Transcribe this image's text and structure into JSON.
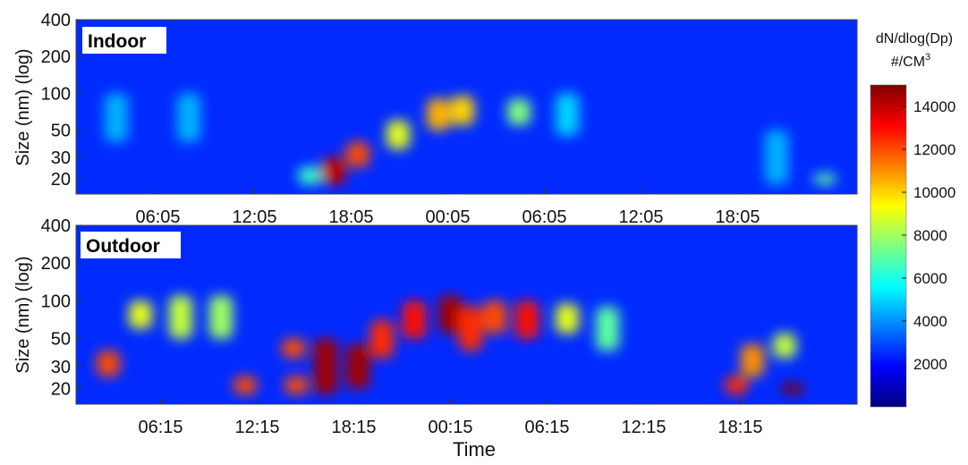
{
  "chart_data": [
    {
      "type": "heatmap",
      "panel_label": "Indoor",
      "ylabel": "Size (nm) (log)",
      "y_scale": "log",
      "ylim": [
        15,
        400
      ],
      "y_ticks": [
        20,
        30,
        50,
        100,
        200,
        400
      ],
      "x_tick_labels": [
        "06:05",
        "12:05",
        "18:05",
        "00:05",
        "06:05",
        "12:05",
        "18:05"
      ],
      "cells": [
        {
          "t": "03:30",
          "d_min": 40,
          "d_max": 100,
          "value": 4500
        },
        {
          "t": "08:00",
          "d_min": 40,
          "d_max": 100,
          "value": 4500
        },
        {
          "t": "15:30",
          "d_min": 18,
          "d_max": 25,
          "value": 6500
        },
        {
          "t": "17:00",
          "d_min": 18,
          "d_max": 30,
          "value": 14000
        },
        {
          "t": "18:30",
          "d_min": 25,
          "d_max": 40,
          "value": 12000
        },
        {
          "t": "21:00",
          "d_min": 35,
          "d_max": 60,
          "value": 9000
        },
        {
          "t": "23:30",
          "d_min": 50,
          "d_max": 90,
          "value": 10500
        },
        {
          "t": "01:00",
          "d_min": 55,
          "d_max": 95,
          "value": 10000
        },
        {
          "t": "04:30",
          "d_min": 55,
          "d_max": 90,
          "value": 7500
        },
        {
          "t": "07:30",
          "d_min": 45,
          "d_max": 100,
          "value": 5000
        },
        {
          "t": "20:30",
          "d_min": 18,
          "d_max": 50,
          "value": 4500
        },
        {
          "t": "23:30",
          "d_min": 18,
          "d_max": 22,
          "value": 7000
        }
      ]
    },
    {
      "type": "heatmap",
      "panel_label": "Outdoor",
      "ylabel": "Size (nm) (log)",
      "xlabel": "Time",
      "y_scale": "log",
      "ylim": [
        15,
        400
      ],
      "y_ticks": [
        20,
        30,
        50,
        100,
        200,
        400
      ],
      "x_tick_labels": [
        "06:15",
        "12:15",
        "18:15",
        "00:15",
        "06:15",
        "12:15",
        "18:15"
      ],
      "cells": [
        {
          "t": "03:00",
          "d_min": 25,
          "d_max": 40,
          "value": 12000
        },
        {
          "t": "05:00",
          "d_min": 60,
          "d_max": 100,
          "value": 9000
        },
        {
          "t": "07:30",
          "d_min": 50,
          "d_max": 110,
          "value": 8500
        },
        {
          "t": "10:00",
          "d_min": 50,
          "d_max": 110,
          "value": 8000
        },
        {
          "t": "11:30",
          "d_min": 18,
          "d_max": 25,
          "value": 12000
        },
        {
          "t": "14:30",
          "d_min": 35,
          "d_max": 50,
          "value": 12000
        },
        {
          "t": "14:40",
          "d_min": 18,
          "d_max": 25,
          "value": 12000
        },
        {
          "t": "16:30",
          "d_min": 18,
          "d_max": 50,
          "value": 14500
        },
        {
          "t": "18:30",
          "d_min": 20,
          "d_max": 45,
          "value": 14500
        },
        {
          "t": "20:00",
          "d_min": 35,
          "d_max": 70,
          "value": 12500
        },
        {
          "t": "22:00",
          "d_min": 50,
          "d_max": 100,
          "value": 13000
        },
        {
          "t": "00:15",
          "d_min": 55,
          "d_max": 110,
          "value": 14500
        },
        {
          "t": "01:30",
          "d_min": 40,
          "d_max": 90,
          "value": 12500
        },
        {
          "t": "03:00",
          "d_min": 55,
          "d_max": 100,
          "value": 12000
        },
        {
          "t": "05:00",
          "d_min": 50,
          "d_max": 100,
          "value": 13000
        },
        {
          "t": "07:30",
          "d_min": 55,
          "d_max": 95,
          "value": 9000
        },
        {
          "t": "10:00",
          "d_min": 40,
          "d_max": 90,
          "value": 7000
        },
        {
          "t": "18:00",
          "d_min": 18,
          "d_max": 25,
          "value": 12500
        },
        {
          "t": "19:00",
          "d_min": 25,
          "d_max": 45,
          "value": 11000
        },
        {
          "t": "21:00",
          "d_min": 35,
          "d_max": 55,
          "value": 8500
        },
        {
          "t": "21:30",
          "d_min": 18,
          "d_max": 22,
          "value": 15000
        }
      ]
    }
  ],
  "colorbar": {
    "title_line1": "dN/dlog(Dp)",
    "title_line2": "#/CM",
    "title_sup": "3",
    "min": 0,
    "max": 15000,
    "ticks": [
      2000,
      4000,
      6000,
      8000,
      10000,
      12000,
      14000
    ],
    "tick_labels": [
      "2000",
      "4000",
      "6000",
      "8000",
      "10000",
      "12000",
      "14000"
    ],
    "colormap": "jet",
    "colors": [
      "#00007f",
      "#0000ff",
      "#007fff",
      "#00ffff",
      "#7fff7f",
      "#ffff00",
      "#ff7f00",
      "#ff0000",
      "#7f0000"
    ]
  },
  "background_value": 2500
}
